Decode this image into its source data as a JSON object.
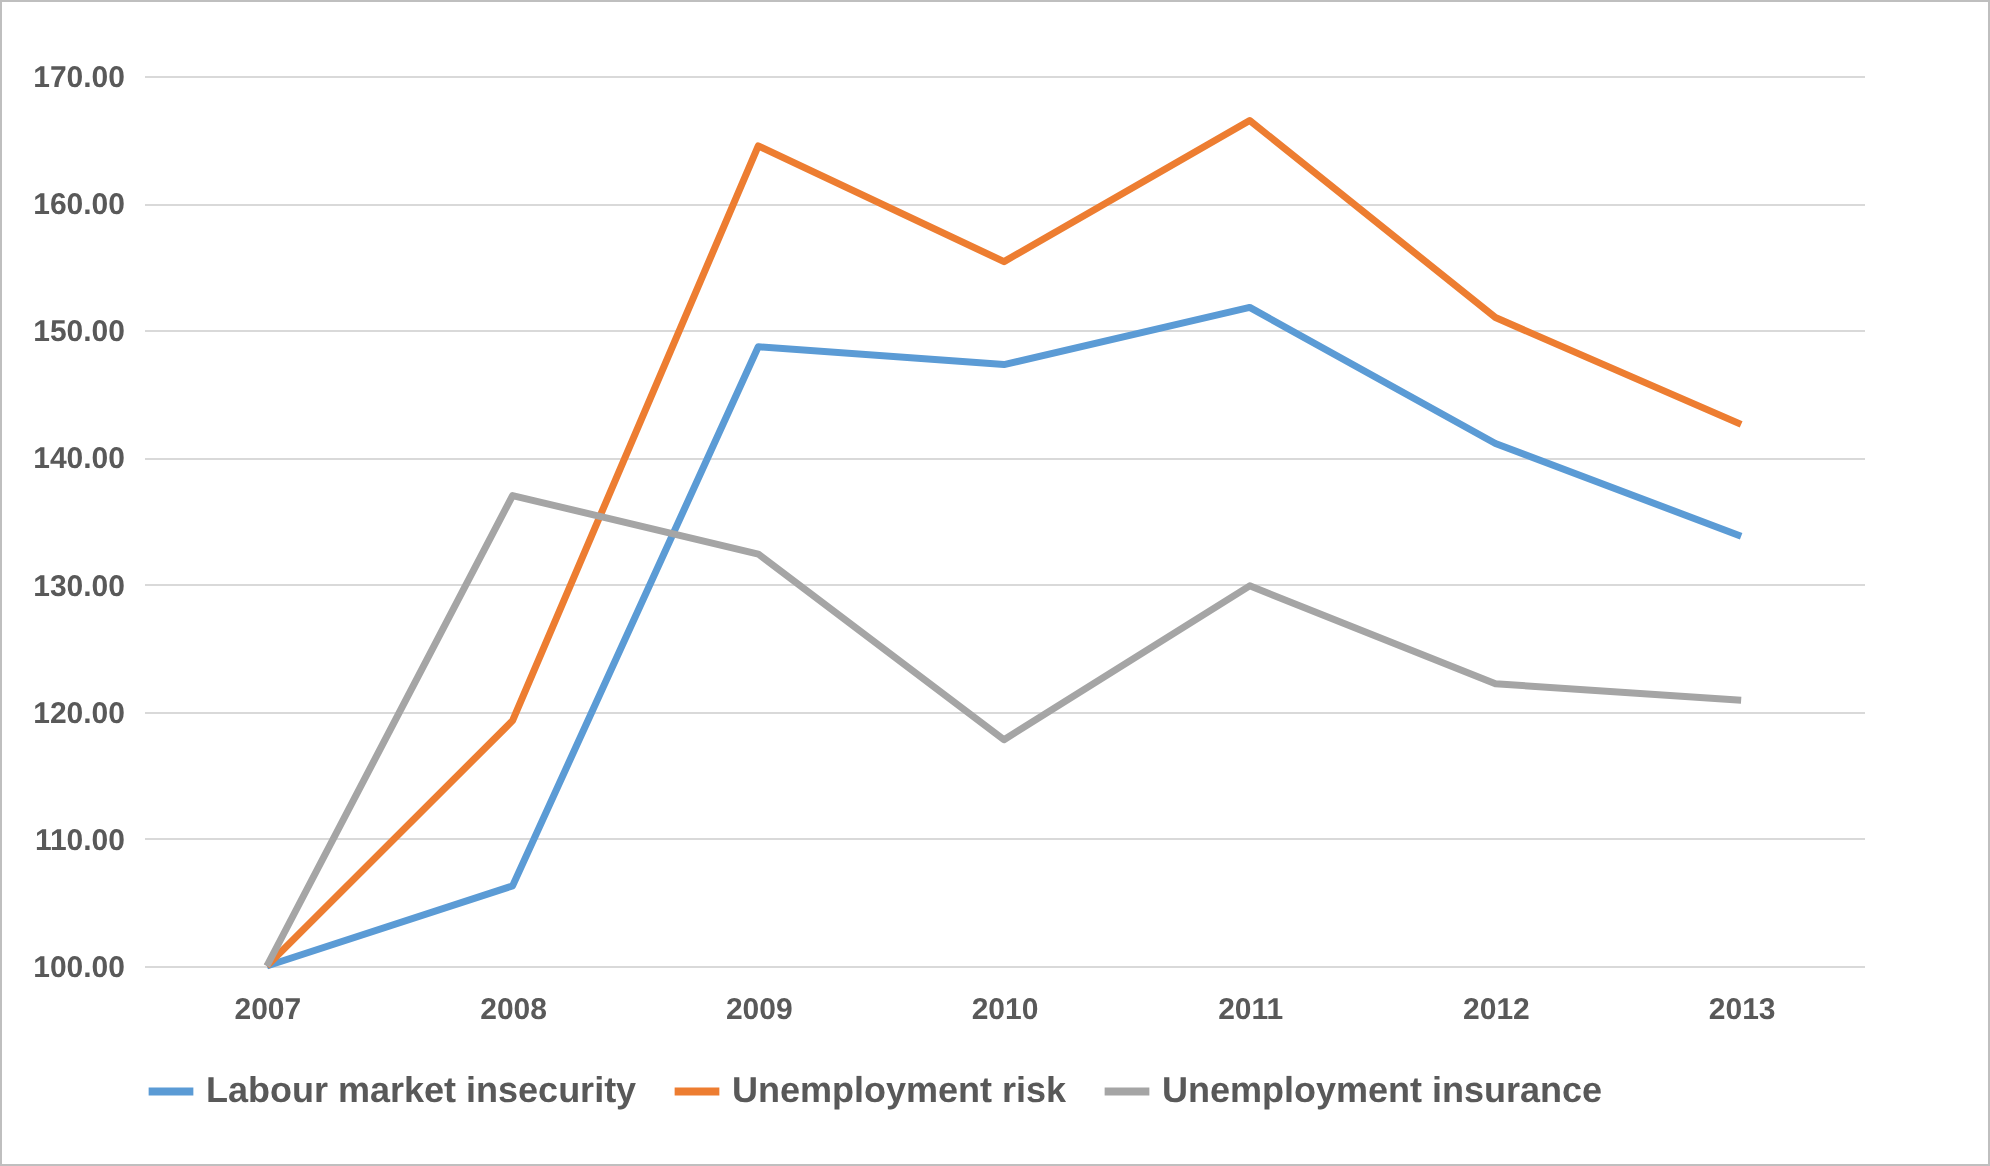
{
  "chart_data": {
    "type": "line",
    "categories": [
      "2007",
      "2008",
      "2009",
      "2010",
      "2011",
      "2012",
      "2013"
    ],
    "series": [
      {
        "name": "Labour market insecurity",
        "color": "#5b9bd5",
        "values": [
          100,
          106.3,
          148.7,
          147.3,
          151.8,
          141.1,
          133.8
        ]
      },
      {
        "name": "Unemployment risk",
        "color": "#ed7d31",
        "values": [
          100,
          119.3,
          164.5,
          155.4,
          166.5,
          151.0,
          142.6
        ]
      },
      {
        "name": "Unemployment insurance",
        "color": "#a5a5a5",
        "values": [
          100,
          137.0,
          132.4,
          117.8,
          129.9,
          122.2,
          120.9
        ]
      }
    ],
    "ylim": [
      100,
      170
    ],
    "yticks": [
      {
        "value": 100,
        "label": "100.00"
      },
      {
        "value": 110,
        "label": "110.00"
      },
      {
        "value": 120,
        "label": "120.00"
      },
      {
        "value": 130,
        "label": "130.00"
      },
      {
        "value": 140,
        "label": "140.00"
      },
      {
        "value": 150,
        "label": "150.00"
      },
      {
        "value": 160,
        "label": "160.00"
      },
      {
        "value": 170,
        "label": "170.00"
      }
    ],
    "grid": "y",
    "legend": "bottom",
    "marker": "none",
    "line_style": "solid"
  }
}
